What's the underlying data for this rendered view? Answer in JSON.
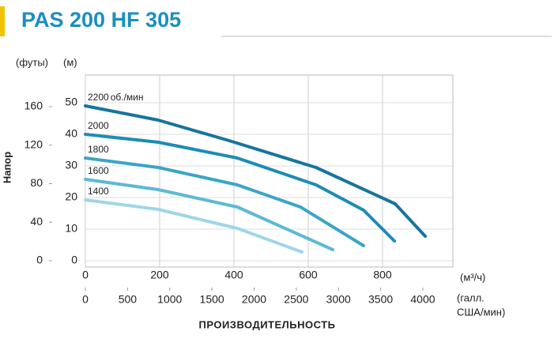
{
  "chart_data": {
    "type": "line",
    "title": "PAS 200 HF 305",
    "y_label": "Напор",
    "y_unit": "(м)",
    "y2_unit": "(футы)",
    "x_unit": "(м³/ч)",
    "x2_unit": [
      "(галл.",
      "США/мин)"
    ],
    "x_label": "ПРОИЗВОДИТЕЛЬНОСТЬ",
    "speed_unit": "об./мин",
    "xlim": [
      0,
      1000
    ],
    "xticks": [
      0,
      200,
      400,
      600,
      800
    ],
    "x2lim": [
      0,
      4403
    ],
    "x2ticks": [
      0,
      500,
      1000,
      1500,
      2000,
      2500,
      3000,
      3500,
      4000
    ],
    "ylim": [
      -2,
      58.75
    ],
    "yticks": [
      0,
      10,
      20,
      30,
      40,
      50
    ],
    "y2lim": [
      -6.6,
      192.8
    ],
    "y2ticks": [
      0,
      40,
      80,
      120,
      160
    ],
    "grid": true,
    "series": [
      {
        "name": "2200",
        "color": "#16759e",
        "x": [
          0,
          196,
          387,
          621,
          834,
          915
        ],
        "values": [
          49,
          44.5,
          38,
          29.5,
          18,
          7.75
        ]
      },
      {
        "name": "2000",
        "color": "#1c8cb6",
        "x": [
          0,
          196,
          409,
          621,
          749,
          832
        ],
        "values": [
          40,
          37.5,
          32.5,
          24,
          16,
          6.25
        ]
      },
      {
        "name": "1800",
        "color": "#3ba5c8",
        "x": [
          0,
          196,
          409,
          579,
          749
        ],
        "values": [
          32.5,
          29.5,
          24,
          17,
          4.75
        ]
      },
      {
        "name": "1600",
        "color": "#5db9d6",
        "x": [
          0,
          196,
          409,
          666
        ],
        "values": [
          25.75,
          22.5,
          17,
          3.5
        ]
      },
      {
        "name": "1400",
        "color": "#a0d5e8",
        "x": [
          0,
          196,
          409,
          583
        ],
        "values": [
          19.25,
          16.25,
          10.25,
          2.75
        ]
      }
    ]
  }
}
